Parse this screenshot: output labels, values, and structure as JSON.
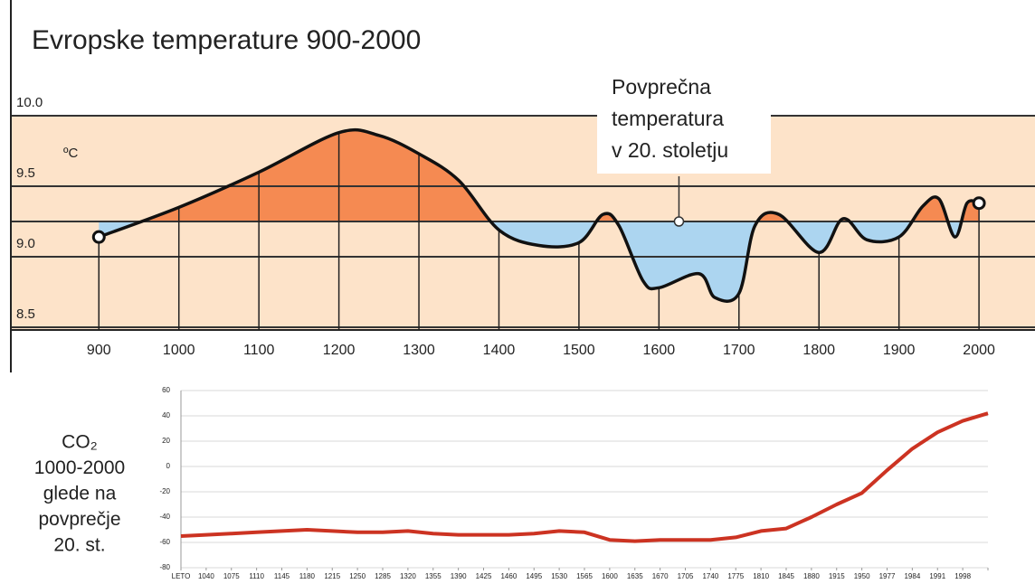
{
  "chart_data": [
    {
      "type": "area",
      "title": "Evropske temperature 900-2000",
      "y_label": "ºC",
      "x": [
        900,
        1000,
        1100,
        1200,
        1250,
        1300,
        1350,
        1400,
        1450,
        1500,
        1530,
        1550,
        1580,
        1600,
        1650,
        1670,
        1700,
        1720,
        1750,
        1800,
        1830,
        1860,
        1900,
        1930,
        1950,
        1970,
        1985,
        2000
      ],
      "values": [
        9.14,
        9.35,
        9.6,
        9.88,
        9.86,
        9.73,
        9.54,
        9.19,
        9.08,
        9.1,
        9.3,
        9.22,
        8.83,
        8.78,
        8.88,
        8.71,
        8.74,
        9.22,
        9.3,
        9.03,
        9.27,
        9.12,
        9.14,
        9.36,
        9.41,
        9.14,
        9.38,
        9.38
      ],
      "xlim": [
        790,
        2070
      ],
      "xticks": [
        900,
        1000,
        1100,
        1200,
        1300,
        1400,
        1500,
        1600,
        1700,
        1800,
        1900,
        2000
      ],
      "ylim": [
        8.5,
        10.0
      ],
      "yticks": [
        {
          "value": 10.0,
          "label": "10.0"
        },
        9.5,
        {
          "value": 9.0,
          "label": "9.0"
        },
        8.5
      ],
      "reference_value": 9.25,
      "annotation": {
        "lines": [
          "Povprečna",
          "temperatura",
          "v 20. stoletju"
        ],
        "x": 1625,
        "y": 9.25
      },
      "above_color": "#f58a52",
      "below_color": "#acd5f0",
      "background_color": "#fde3c9"
    },
    {
      "type": "line",
      "title_lines": [
        "CO₂",
        "1000-2000",
        "glede na",
        "povprečje",
        "20. st."
      ],
      "categories": [
        "LETO",
        "1040",
        "1075",
        "1110",
        "1145",
        "1180",
        "1215",
        "1250",
        "1285",
        "1320",
        "1355",
        "1390",
        "1425",
        "1460",
        "1495",
        "1530",
        "1565",
        "1600",
        "1635",
        "1670",
        "1705",
        "1740",
        "1775",
        "1810",
        "1845",
        "1880",
        "1915",
        "1950",
        "1977",
        "1984",
        "1991",
        "1998",
        null
      ],
      "values": [
        -55,
        -54,
        -53,
        -52,
        -51,
        -50,
        -51,
        -52,
        -52,
        -51,
        -53,
        -54,
        -54,
        -54,
        -53,
        -51,
        -52,
        -58,
        -59,
        -58,
        -58,
        -58,
        -56,
        -51,
        -49,
        -40,
        -30,
        -21,
        -3,
        14,
        27,
        36,
        42
      ],
      "color": "#cc3322",
      "ylim": [
        -80,
        60
      ],
      "yticks": [
        -80,
        -60,
        -40,
        -20,
        0,
        20,
        40,
        60
      ],
      "grid": true
    }
  ]
}
